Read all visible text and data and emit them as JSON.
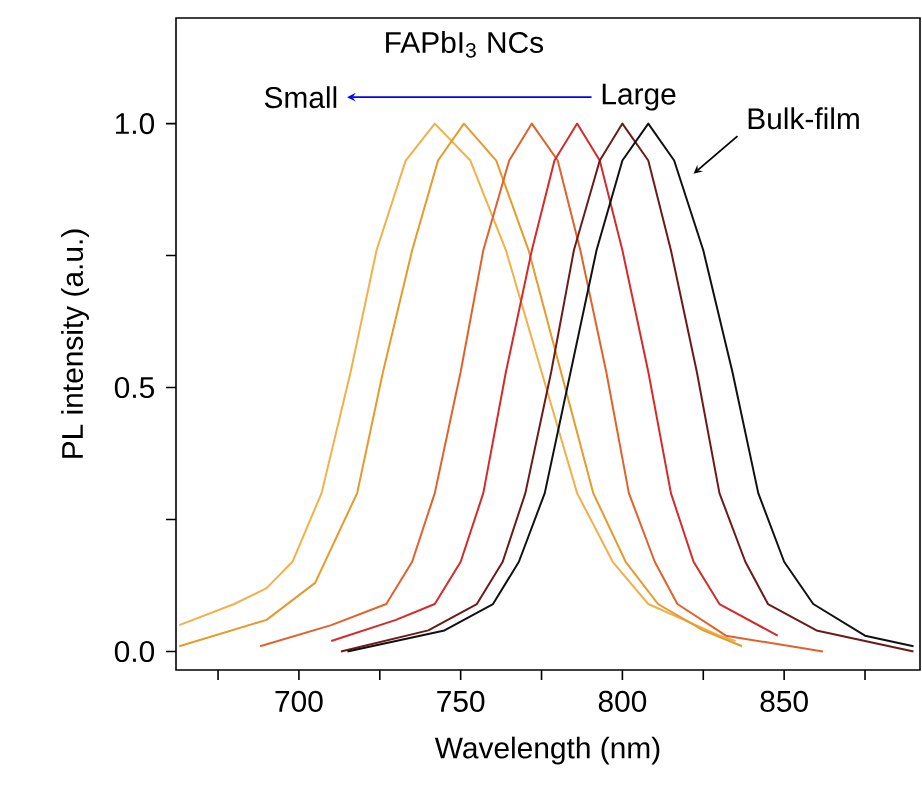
{
  "chart_data": {
    "type": "line",
    "xlabel": "Wavelength (nm)",
    "ylabel": "PL intensity (a.u.)",
    "xlim": [
      662,
      892
    ],
    "ylim": [
      -0.035,
      1.2
    ],
    "xticks": [
      {
        "value": 675,
        "label": null
      },
      700,
      {
        "value": 725,
        "label": null
      },
      750,
      {
        "value": 775,
        "label": null
      },
      800,
      {
        "value": 825,
        "label": null
      },
      850,
      {
        "value": 875,
        "label": null
      }
    ],
    "yticks": [
      {
        "value": 0,
        "label": "0.0"
      },
      {
        "value": 0.25,
        "label": null
      },
      {
        "value": 0.5,
        "label": "0.5"
      },
      {
        "value": 0.75,
        "label": null
      },
      {
        "value": 1,
        "label": "1.0"
      }
    ],
    "marker": "none",
    "line_style": "solid",
    "grid": false,
    "legend": false,
    "series": [
      {
        "color": "#f2b04a",
        "x": [
          663,
          680,
          690,
          698,
          707,
          716,
          724,
          733,
          742,
          753,
          764,
          775,
          786,
          797,
          808,
          830,
          835
        ],
        "values": [
          0.05,
          0.09,
          0.12,
          0.17,
          0.3,
          0.53,
          0.76,
          0.93,
          1.0,
          0.93,
          0.76,
          0.53,
          0.3,
          0.17,
          0.09,
          0.03,
          0.02
        ]
      },
      {
        "color": "#e59a2a",
        "x": [
          663,
          690,
          705,
          718,
          726,
          735,
          743,
          751,
          761,
          771,
          781,
          791,
          801,
          811,
          825,
          837
        ],
        "values": [
          0.01,
          0.06,
          0.13,
          0.3,
          0.53,
          0.76,
          0.93,
          1.0,
          0.93,
          0.76,
          0.53,
          0.3,
          0.17,
          0.09,
          0.04,
          0.01
        ]
      },
      {
        "color": "#e0622a",
        "x": [
          688,
          710,
          727,
          735,
          742,
          750,
          757,
          765,
          772,
          780,
          787,
          795,
          802,
          810,
          817,
          832,
          862
        ],
        "values": [
          0.01,
          0.05,
          0.09,
          0.17,
          0.3,
          0.53,
          0.76,
          0.93,
          1.0,
          0.93,
          0.76,
          0.53,
          0.3,
          0.17,
          0.09,
          0.03,
          0.0
        ]
      },
      {
        "color": "#d62a2a",
        "x": [
          710,
          730,
          742,
          750,
          757,
          764,
          772,
          779,
          786,
          793,
          800,
          808,
          815,
          822,
          830,
          848
        ],
        "values": [
          0.02,
          0.06,
          0.09,
          0.17,
          0.3,
          0.53,
          0.76,
          0.93,
          1.0,
          0.93,
          0.76,
          0.53,
          0.3,
          0.17,
          0.09,
          0.03
        ]
      },
      {
        "color": "#6b1a1a",
        "x": [
          713,
          740,
          755,
          763,
          770,
          778,
          785,
          793,
          800,
          808,
          815,
          823,
          830,
          838,
          845,
          860,
          890
        ],
        "values": [
          0.0,
          0.04,
          0.09,
          0.17,
          0.3,
          0.53,
          0.76,
          0.93,
          1.0,
          0.93,
          0.76,
          0.53,
          0.3,
          0.17,
          0.09,
          0.04,
          0.0
        ]
      },
      {
        "color": "#111111",
        "x": [
          715,
          745,
          760,
          768,
          776,
          784,
          792,
          800,
          808,
          816,
          825,
          834,
          842,
          850,
          859,
          875,
          890
        ],
        "values": [
          0.0,
          0.04,
          0.09,
          0.17,
          0.3,
          0.53,
          0.76,
          0.93,
          1.0,
          0.93,
          0.76,
          0.53,
          0.3,
          0.17,
          0.09,
          0.03,
          0.01
        ]
      }
    ],
    "annotations": [
      "FAPbI$_{3}$ NCs",
      "Small",
      "Large",
      "Bulk-film"
    ]
  }
}
